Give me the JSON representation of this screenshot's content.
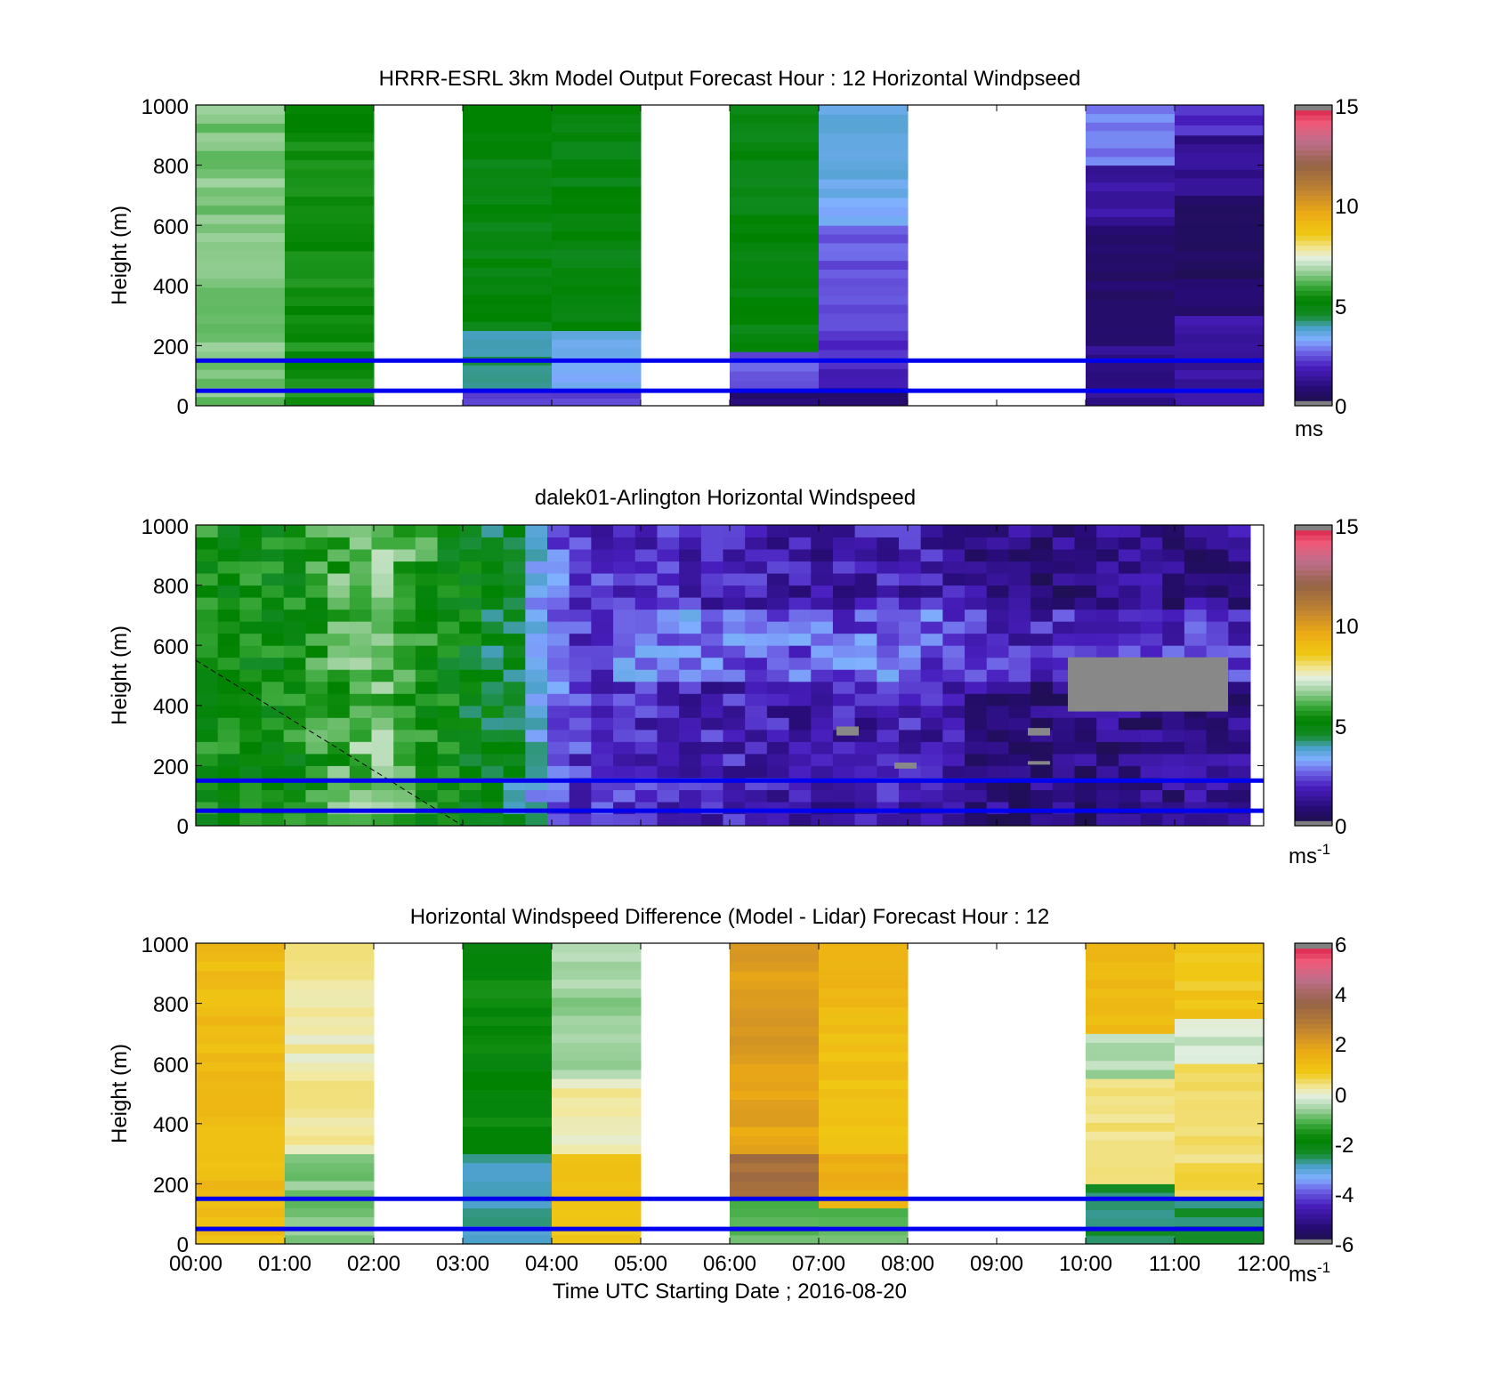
{
  "figure": {
    "xlabel": "Time UTC  Starting Date ; 2016-08-20",
    "time_ticks": [
      "00:00",
      "01:00",
      "02:00",
      "03:00",
      "04:00",
      "05:00",
      "06:00",
      "07:00",
      "08:00",
      "09:00",
      "10:00",
      "11:00",
      "12:00"
    ],
    "height_ticks": [
      "0",
      "200",
      "400",
      "600",
      "800",
      "1000"
    ]
  },
  "chart_data": [
    {
      "type": "heatmap",
      "title": "HRRR-ESRL 3km Model Output   Forecast Hour : 12 Horizontal Windpseed",
      "ylabel": "Height (m)",
      "xlim": [
        0,
        12
      ],
      "ylim": [
        0,
        1000
      ],
      "colorbar": {
        "label": "ms",
        "label_sup": "",
        "ticks": [
          "0",
          "5",
          "10",
          "15"
        ],
        "range": [
          0,
          15
        ]
      },
      "reference_lines_m": [
        50,
        150
      ],
      "reference_line_color": "#0000ee",
      "hours_with_data": [
        0,
        1,
        3,
        4,
        6,
        7,
        10,
        11
      ],
      "profiles": {
        "0": [
          [
            0,
            1000,
            6.5
          ]
        ],
        "1": [
          [
            0,
            1000,
            5.5
          ]
        ],
        "3": [
          [
            0,
            50,
            2.5
          ],
          [
            50,
            250,
            4.2
          ],
          [
            250,
            1000,
            5.0
          ]
        ],
        "4": [
          [
            0,
            50,
            2.5
          ],
          [
            50,
            250,
            3.5
          ],
          [
            250,
            1000,
            5.0
          ]
        ],
        "6": [
          [
            0,
            50,
            0.8
          ],
          [
            50,
            180,
            2.5
          ],
          [
            180,
            1000,
            5.0
          ]
        ],
        "7": [
          [
            0,
            60,
            0.6
          ],
          [
            60,
            250,
            2.0
          ],
          [
            250,
            600,
            2.5
          ],
          [
            600,
            1000,
            3.5
          ]
        ],
        "10": [
          [
            0,
            200,
            1.2
          ],
          [
            200,
            600,
            0.6
          ],
          [
            600,
            800,
            1.5
          ],
          [
            800,
            1000,
            3.0
          ]
        ],
        "11": [
          [
            0,
            300,
            1.5
          ],
          [
            300,
            700,
            0.6
          ],
          [
            700,
            900,
            1.2
          ],
          [
            900,
            1000,
            2.0
          ]
        ]
      }
    },
    {
      "type": "heatmap",
      "title": "dalek01-Arlington  Horizontal Windspeed",
      "ylabel": "Height (m)",
      "xlim": [
        0,
        12
      ],
      "ylim": [
        0,
        1000
      ],
      "colorbar": {
        "label": "ms",
        "label_sup": "-1",
        "ticks": [
          "0",
          "5",
          "10",
          "15"
        ],
        "range": [
          0,
          15
        ]
      },
      "reference_lines_m": [
        50,
        150
      ],
      "reference_line_color": "#0000ee",
      "coverage_hours": [
        0,
        11.85
      ],
      "time_speed_trend": [
        [
          0,
          5.5
        ],
        [
          1,
          5.2
        ],
        [
          2,
          6.5
        ],
        [
          3,
          5.0
        ],
        [
          3.6,
          4.5
        ],
        [
          4.2,
          2.2
        ],
        [
          5,
          2.0
        ],
        [
          6,
          1.8
        ],
        [
          7,
          1.6
        ],
        [
          8,
          1.8
        ],
        [
          9,
          1.1
        ],
        [
          10,
          1.0
        ],
        [
          11,
          1.2
        ],
        [
          11.85,
          1.2
        ]
      ],
      "missing_data_segments": [
        [
          9.8,
          11.6,
          380,
          560
        ],
        [
          7.2,
          7.45,
          300,
          330
        ],
        [
          9.35,
          9.6,
          300,
          325
        ],
        [
          7.85,
          8.1,
          190,
          210
        ],
        [
          9.35,
          9.6,
          205,
          215
        ]
      ]
    },
    {
      "type": "heatmap",
      "title": "Horizontal Windspeed Difference (Model - Lidar) Forecast Hour : 12",
      "ylabel": "Height (m)",
      "xlim": [
        0,
        12
      ],
      "ylim": [
        0,
        1000
      ],
      "colorbar": {
        "label": "ms",
        "label_sup": "-1",
        "ticks": [
          "-6",
          "-4",
          "-2",
          "0",
          "2",
          "4",
          "6"
        ],
        "range": [
          -6,
          6
        ]
      },
      "reference_lines_m": [
        50,
        150
      ],
      "reference_line_color": "#0000ee",
      "hours_with_data": [
        0,
        1,
        3,
        4,
        6,
        7,
        10,
        11
      ],
      "profiles": {
        "0": [
          [
            0,
            1000,
            1.2
          ]
        ],
        "1": [
          [
            0,
            300,
            -0.8
          ],
          [
            300,
            1000,
            0.2
          ]
        ],
        "3": [
          [
            0,
            300,
            -2.8
          ],
          [
            300,
            1000,
            -1.8
          ]
        ],
        "4": [
          [
            0,
            300,
            1.0
          ],
          [
            300,
            550,
            0.2
          ],
          [
            550,
            1000,
            -0.6
          ]
        ],
        "6": [
          [
            0,
            150,
            -1.0
          ],
          [
            150,
            300,
            3.2
          ],
          [
            300,
            600,
            1.8
          ],
          [
            600,
            1000,
            2.0
          ]
        ],
        "7": [
          [
            0,
            120,
            -1.0
          ],
          [
            120,
            300,
            1.5
          ],
          [
            300,
            700,
            1.0
          ],
          [
            700,
            1000,
            1.3
          ]
        ],
        "10": [
          [
            0,
            200,
            -2.5
          ],
          [
            200,
            550,
            0.3
          ],
          [
            550,
            700,
            -0.5
          ],
          [
            700,
            1000,
            1.3
          ]
        ],
        "11": [
          [
            0,
            150,
            -2.5
          ],
          [
            150,
            600,
            0.5
          ],
          [
            600,
            750,
            -0.3
          ],
          [
            750,
            1000,
            0.9
          ]
        ]
      }
    }
  ]
}
